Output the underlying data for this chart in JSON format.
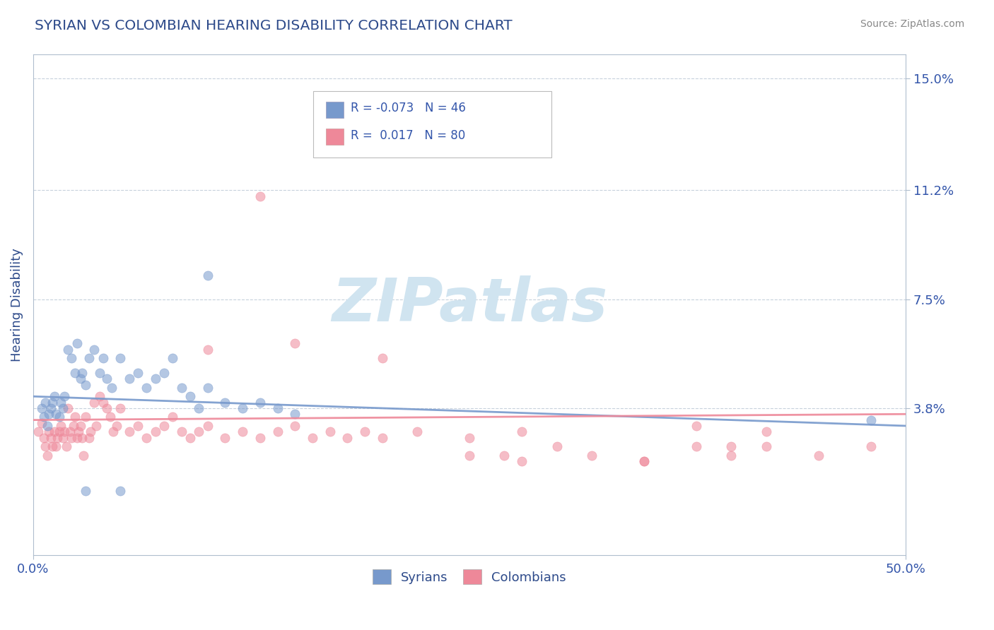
{
  "title": "SYRIAN VS COLOMBIAN HEARING DISABILITY CORRELATION CHART",
  "source": "Source: ZipAtlas.com",
  "ylabel": "Hearing Disability",
  "xlim": [
    0.0,
    0.5
  ],
  "ylim": [
    -0.012,
    0.158
  ],
  "yticks": [
    0.038,
    0.075,
    0.112,
    0.15
  ],
  "ytick_labels": [
    "3.8%",
    "7.5%",
    "11.2%",
    "15.0%"
  ],
  "xticks": [
    0.0,
    0.5
  ],
  "xtick_labels": [
    "0.0%",
    "50.0%"
  ],
  "syrian_color": "#7799cc",
  "colombian_color": "#ee8899",
  "syrian_R": -0.073,
  "syrian_N": 46,
  "colombian_R": 0.017,
  "colombian_N": 80,
  "legend_label_1": "Syrians",
  "legend_label_2": "Colombians",
  "title_color": "#2d4a8a",
  "axis_label_color": "#3355aa",
  "tick_color": "#3355aa",
  "background_color": "#ffffff",
  "watermark": "ZIPatlas",
  "watermark_color": "#d0e4f0",
  "grid_color": "#b0bece",
  "syrian_trendline": [
    0.042,
    0.032
  ],
  "colombian_trendline": [
    0.034,
    0.036
  ],
  "syrian_scatter_x": [
    0.005,
    0.006,
    0.007,
    0.008,
    0.009,
    0.01,
    0.011,
    0.012,
    0.013,
    0.015,
    0.016,
    0.017,
    0.018,
    0.02,
    0.022,
    0.024,
    0.025,
    0.027,
    0.028,
    0.03,
    0.032,
    0.035,
    0.038,
    0.04,
    0.042,
    0.045,
    0.05,
    0.055,
    0.06,
    0.065,
    0.07,
    0.075,
    0.08,
    0.085,
    0.09,
    0.095,
    0.1,
    0.11,
    0.12,
    0.13,
    0.14,
    0.15,
    0.48,
    0.1,
    0.03,
    0.05
  ],
  "syrian_scatter_y": [
    0.038,
    0.035,
    0.04,
    0.032,
    0.036,
    0.038,
    0.04,
    0.042,
    0.036,
    0.035,
    0.04,
    0.038,
    0.042,
    0.058,
    0.055,
    0.05,
    0.06,
    0.048,
    0.05,
    0.046,
    0.055,
    0.058,
    0.05,
    0.055,
    0.048,
    0.045,
    0.055,
    0.048,
    0.05,
    0.045,
    0.048,
    0.05,
    0.055,
    0.045,
    0.042,
    0.038,
    0.045,
    0.04,
    0.038,
    0.04,
    0.038,
    0.036,
    0.034,
    0.083,
    0.01,
    0.01
  ],
  "colombian_scatter_x": [
    0.003,
    0.005,
    0.006,
    0.007,
    0.008,
    0.009,
    0.01,
    0.011,
    0.012,
    0.013,
    0.014,
    0.015,
    0.016,
    0.017,
    0.018,
    0.019,
    0.02,
    0.021,
    0.022,
    0.023,
    0.024,
    0.025,
    0.026,
    0.027,
    0.028,
    0.029,
    0.03,
    0.032,
    0.033,
    0.035,
    0.036,
    0.038,
    0.04,
    0.042,
    0.044,
    0.046,
    0.048,
    0.05,
    0.055,
    0.06,
    0.065,
    0.07,
    0.075,
    0.08,
    0.085,
    0.09,
    0.095,
    0.1,
    0.11,
    0.12,
    0.13,
    0.14,
    0.15,
    0.16,
    0.17,
    0.18,
    0.19,
    0.2,
    0.22,
    0.25,
    0.27,
    0.28,
    0.3,
    0.32,
    0.35,
    0.38,
    0.4,
    0.42,
    0.45,
    0.48,
    0.15,
    0.2,
    0.25,
    0.28,
    0.35,
    0.38,
    0.4,
    0.42,
    0.13,
    0.1
  ],
  "colombian_scatter_y": [
    0.03,
    0.033,
    0.028,
    0.025,
    0.022,
    0.03,
    0.028,
    0.025,
    0.03,
    0.025,
    0.028,
    0.03,
    0.032,
    0.028,
    0.03,
    0.025,
    0.038,
    0.03,
    0.028,
    0.032,
    0.035,
    0.028,
    0.03,
    0.032,
    0.028,
    0.022,
    0.035,
    0.028,
    0.03,
    0.04,
    0.032,
    0.042,
    0.04,
    0.038,
    0.035,
    0.03,
    0.032,
    0.038,
    0.03,
    0.032,
    0.028,
    0.03,
    0.032,
    0.035,
    0.03,
    0.028,
    0.03,
    0.032,
    0.028,
    0.03,
    0.028,
    0.03,
    0.032,
    0.028,
    0.03,
    0.028,
    0.03,
    0.028,
    0.03,
    0.028,
    0.022,
    0.02,
    0.025,
    0.022,
    0.02,
    0.025,
    0.022,
    0.025,
    0.022,
    0.025,
    0.06,
    0.055,
    0.022,
    0.03,
    0.02,
    0.032,
    0.025,
    0.03,
    0.11,
    0.058
  ]
}
